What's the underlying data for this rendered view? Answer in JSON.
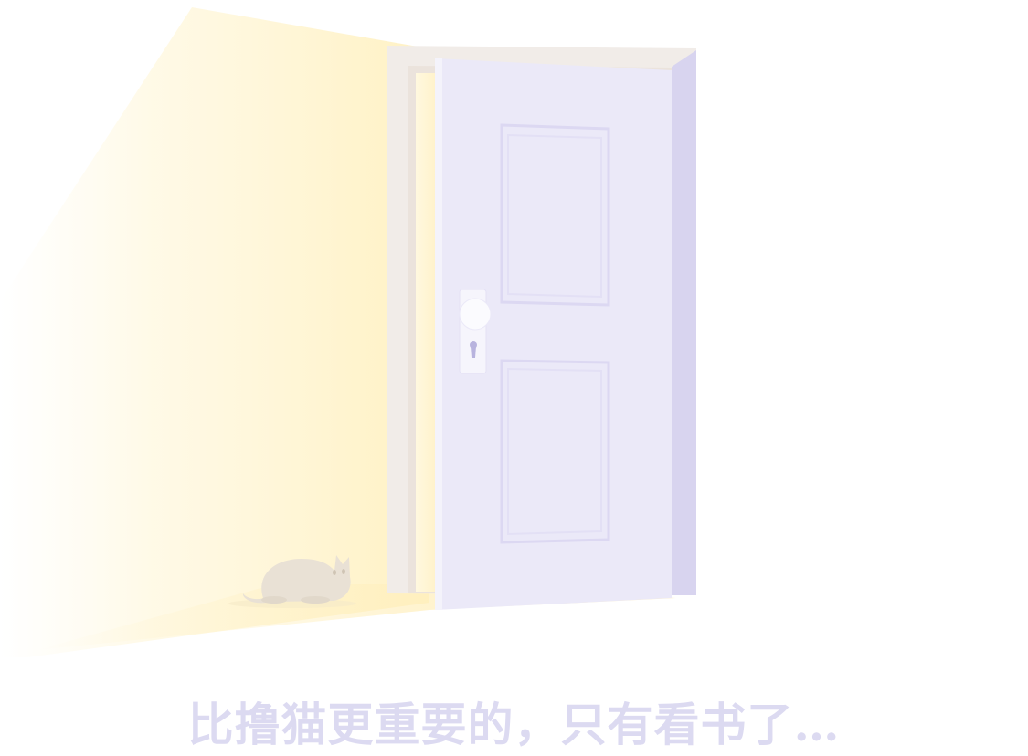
{
  "empty_state": {
    "message": "比撸猫更重要的，只有看书了…",
    "illustration": "open-door-with-cat-icon"
  },
  "colors": {
    "door": "#ebe9f8",
    "door_shadow": "#d6d2f0",
    "light": "#fff3c4",
    "caption": "#dcdaf1",
    "cat": "#e9e1d5"
  }
}
